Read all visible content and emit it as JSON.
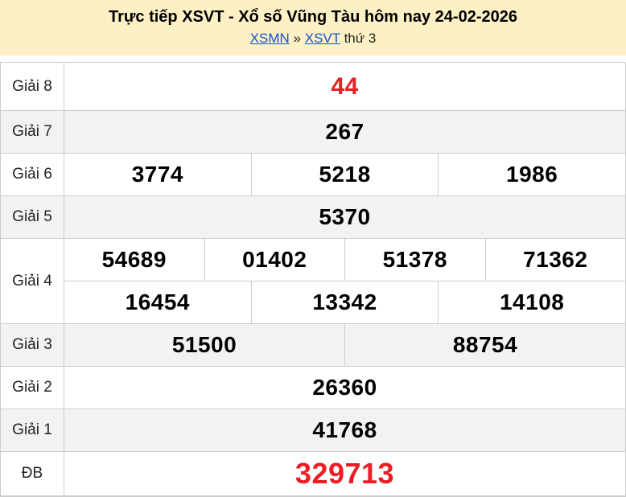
{
  "header": {
    "title": "Trực tiếp XSVT - Xổ số Vũng Tàu hôm nay 24-02-2026",
    "breadcrumb": {
      "link_region": "XSMN",
      "separator": "»",
      "link_province": "XSVT",
      "suffix": "thứ 3"
    }
  },
  "colors": {
    "header_bg": "#fdf0c5",
    "row_alt_bg": "#f2f2f2",
    "border": "#cccccc",
    "highlight_red": "#ec1d24",
    "link_blue": "#1155cc"
  },
  "results_table": {
    "rows": [
      {
        "key": "giai-8",
        "label": "Giải 8",
        "red": true,
        "lines": [
          [
            "44"
          ]
        ]
      },
      {
        "key": "giai-7",
        "label": "Giải 7",
        "red": false,
        "lines": [
          [
            "267"
          ]
        ]
      },
      {
        "key": "giai-6",
        "label": "Giải 6",
        "red": false,
        "lines": [
          [
            "3774",
            "5218",
            "1986"
          ]
        ]
      },
      {
        "key": "giai-5",
        "label": "Giải 5",
        "red": false,
        "lines": [
          [
            "5370"
          ]
        ]
      },
      {
        "key": "giai-4",
        "label": "Giải 4",
        "red": false,
        "lines": [
          [
            "54689",
            "01402",
            "51378",
            "71362"
          ],
          [
            "16454",
            "13342",
            "14108"
          ]
        ]
      },
      {
        "key": "giai-3",
        "label": "Giải 3",
        "red": false,
        "lines": [
          [
            "51500",
            "88754"
          ]
        ]
      },
      {
        "key": "giai-2",
        "label": "Giải 2",
        "red": false,
        "lines": [
          [
            "26360"
          ]
        ]
      },
      {
        "key": "giai-1",
        "label": "Giải 1",
        "red": false,
        "lines": [
          [
            "41768"
          ]
        ]
      },
      {
        "key": "db",
        "label": "ĐB",
        "red": true,
        "lines": [
          [
            "329713"
          ]
        ]
      }
    ]
  }
}
